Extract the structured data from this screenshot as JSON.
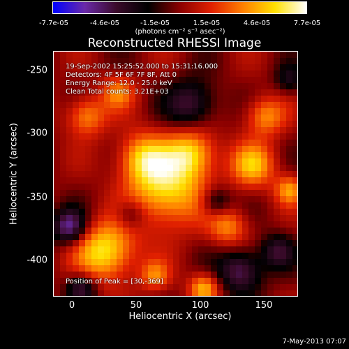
{
  "colorbar": {
    "ticks": [
      "-7.7e-05",
      "-4.6e-05",
      "-1.5e-05",
      "1.5e-05",
      "4.6e-05",
      "7.7e-05"
    ],
    "unit": "(photons cm⁻² s⁻¹ asec⁻²)",
    "range": [
      -7.7e-05,
      7.7e-05
    ]
  },
  "plot": {
    "title": "Reconstructed RHESSI Image",
    "xlabel": "Heliocentric X (arcsec)",
    "ylabel": "Heliocentric Y (arcsec)",
    "xticks": [
      "0",
      "50",
      "100",
      "150"
    ],
    "yticks": [
      "-250",
      "-300",
      "-350",
      "-400"
    ],
    "xrange": [
      -16,
      176
    ],
    "yrange": [
      -432,
      -240
    ]
  },
  "info": {
    "time": "19-Sep-2002 15:25:52.000 to 15:31:16.000",
    "detectors": "Detectors: 4F 5F 6F 7F 8F, Att 0",
    "energy": "Energy Range: 12.0 - 25.0 keV",
    "clean": "Clean    Total counts: 3.21E+03",
    "peak": "Position of Peak = [30,-369]"
  },
  "footer": {
    "date": "7-May-2013 07:07"
  },
  "chart_data": {
    "type": "heatmap",
    "title": "Reconstructed RHESSI Image",
    "xlabel": "Heliocentric X (arcsec)",
    "ylabel": "Heliocentric Y (arcsec)",
    "xlim": [
      -16,
      176
    ],
    "ylim": [
      -432,
      -240
    ],
    "colorbar_range": [
      -7.7e-05,
      7.7e-05
    ],
    "peak": [
      30,
      -369
    ],
    "colors": {
      "scale": [
        "#0000ff",
        "#6a2aa8",
        "#3a0a2a",
        "#000000",
        "#8a0000",
        "#e02000",
        "#ff8000",
        "#ffe000",
        "#ffffff"
      ]
    }
  }
}
